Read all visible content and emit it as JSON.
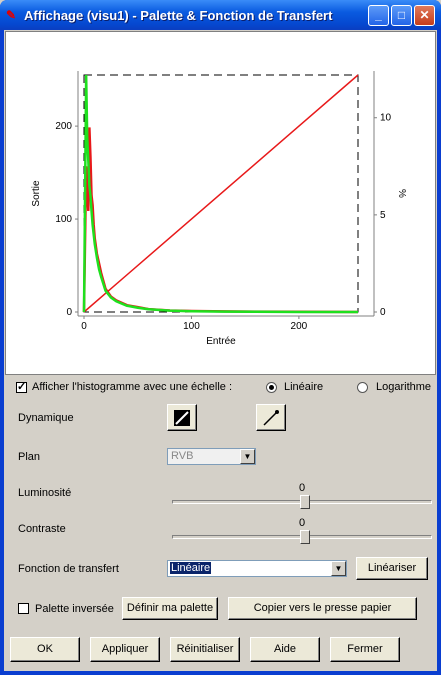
{
  "window": {
    "title": "Affichage (visu1) - Palette & Fonction de Transfert",
    "icon": "app-icon"
  },
  "colors": {
    "red_curve": "#e8191a",
    "green_curve": "#1ee01e",
    "titlebar": "#0a5be0",
    "dialog": "#d4d0c8"
  },
  "chart_data": {
    "type": "line",
    "xlabel": "Entrée",
    "ylabel": "Sortie",
    "y2label": "%",
    "xlim": [
      0,
      255
    ],
    "ylim": [
      0,
      255
    ],
    "y2lim": [
      0,
      12.2
    ],
    "xticks": [
      0,
      100,
      200
    ],
    "yticks": [
      0,
      100,
      200
    ],
    "y2ticks": [
      0,
      5,
      10
    ],
    "series": [
      {
        "color": "#e8191a",
        "kind": "transfer",
        "x": [
          0,
          255
        ],
        "y": [
          0,
          255
        ]
      },
      {
        "color": "#e8191a",
        "kind": "histogram_pct",
        "x": [
          0,
          2,
          4,
          5,
          6,
          7,
          8,
          9,
          10,
          12,
          14,
          16,
          20,
          25,
          30,
          40,
          50,
          60,
          80,
          100,
          130,
          160,
          200,
          255
        ],
        "y": [
          0,
          7.5,
          5.2,
          9.5,
          8.0,
          6.0,
          5.5,
          4.5,
          3.8,
          3.0,
          2.5,
          2.0,
          1.2,
          0.8,
          0.6,
          0.35,
          0.25,
          0.15,
          0.08,
          0.05,
          0.03,
          0.02,
          0.01,
          0.0
        ]
      },
      {
        "color": "#1ee01e",
        "kind": "histogram_pct",
        "x": [
          0,
          2,
          3,
          4,
          5,
          6,
          7,
          8,
          10,
          12,
          14,
          16,
          20,
          25,
          30,
          40,
          50,
          60,
          80,
          100,
          130,
          160,
          200,
          255
        ],
        "y": [
          0,
          12.2,
          9.0,
          7.8,
          6.5,
          6.0,
          5.2,
          4.5,
          3.5,
          2.8,
          2.2,
          1.8,
          1.1,
          0.75,
          0.55,
          0.32,
          0.22,
          0.14,
          0.07,
          0.04,
          0.02,
          0.01,
          0.0,
          0.0
        ]
      }
    ]
  },
  "histogram": {
    "label": "Afficher l'histogramme avec une échelle :",
    "checked": true,
    "scale_linear": "Linéaire",
    "scale_log": "Logarithme",
    "selected": "Linéaire"
  },
  "dynamique": {
    "label": "Dynamique",
    "btn1_icon": "dynamic-full-icon",
    "btn2_icon": "dynamic-pen-icon"
  },
  "plan": {
    "label": "Plan",
    "value": "RVB"
  },
  "luminosite": {
    "label": "Luminosité",
    "value": "0",
    "level": 0.5
  },
  "contraste": {
    "label": "Contraste",
    "value": "0",
    "level": 0.5
  },
  "fonction": {
    "label": "Fonction de transfert",
    "value": "Linéaire",
    "linearize_btn": "Linéariser"
  },
  "palette": {
    "inverse_label": "Palette inversée",
    "define_btn": "Définir ma palette",
    "copy_btn": "Copier vers le presse papier"
  },
  "footer": {
    "ok": "OK",
    "apply": "Appliquer",
    "reset": "Réinitialiser",
    "help": "Aide",
    "close": "Fermer"
  }
}
